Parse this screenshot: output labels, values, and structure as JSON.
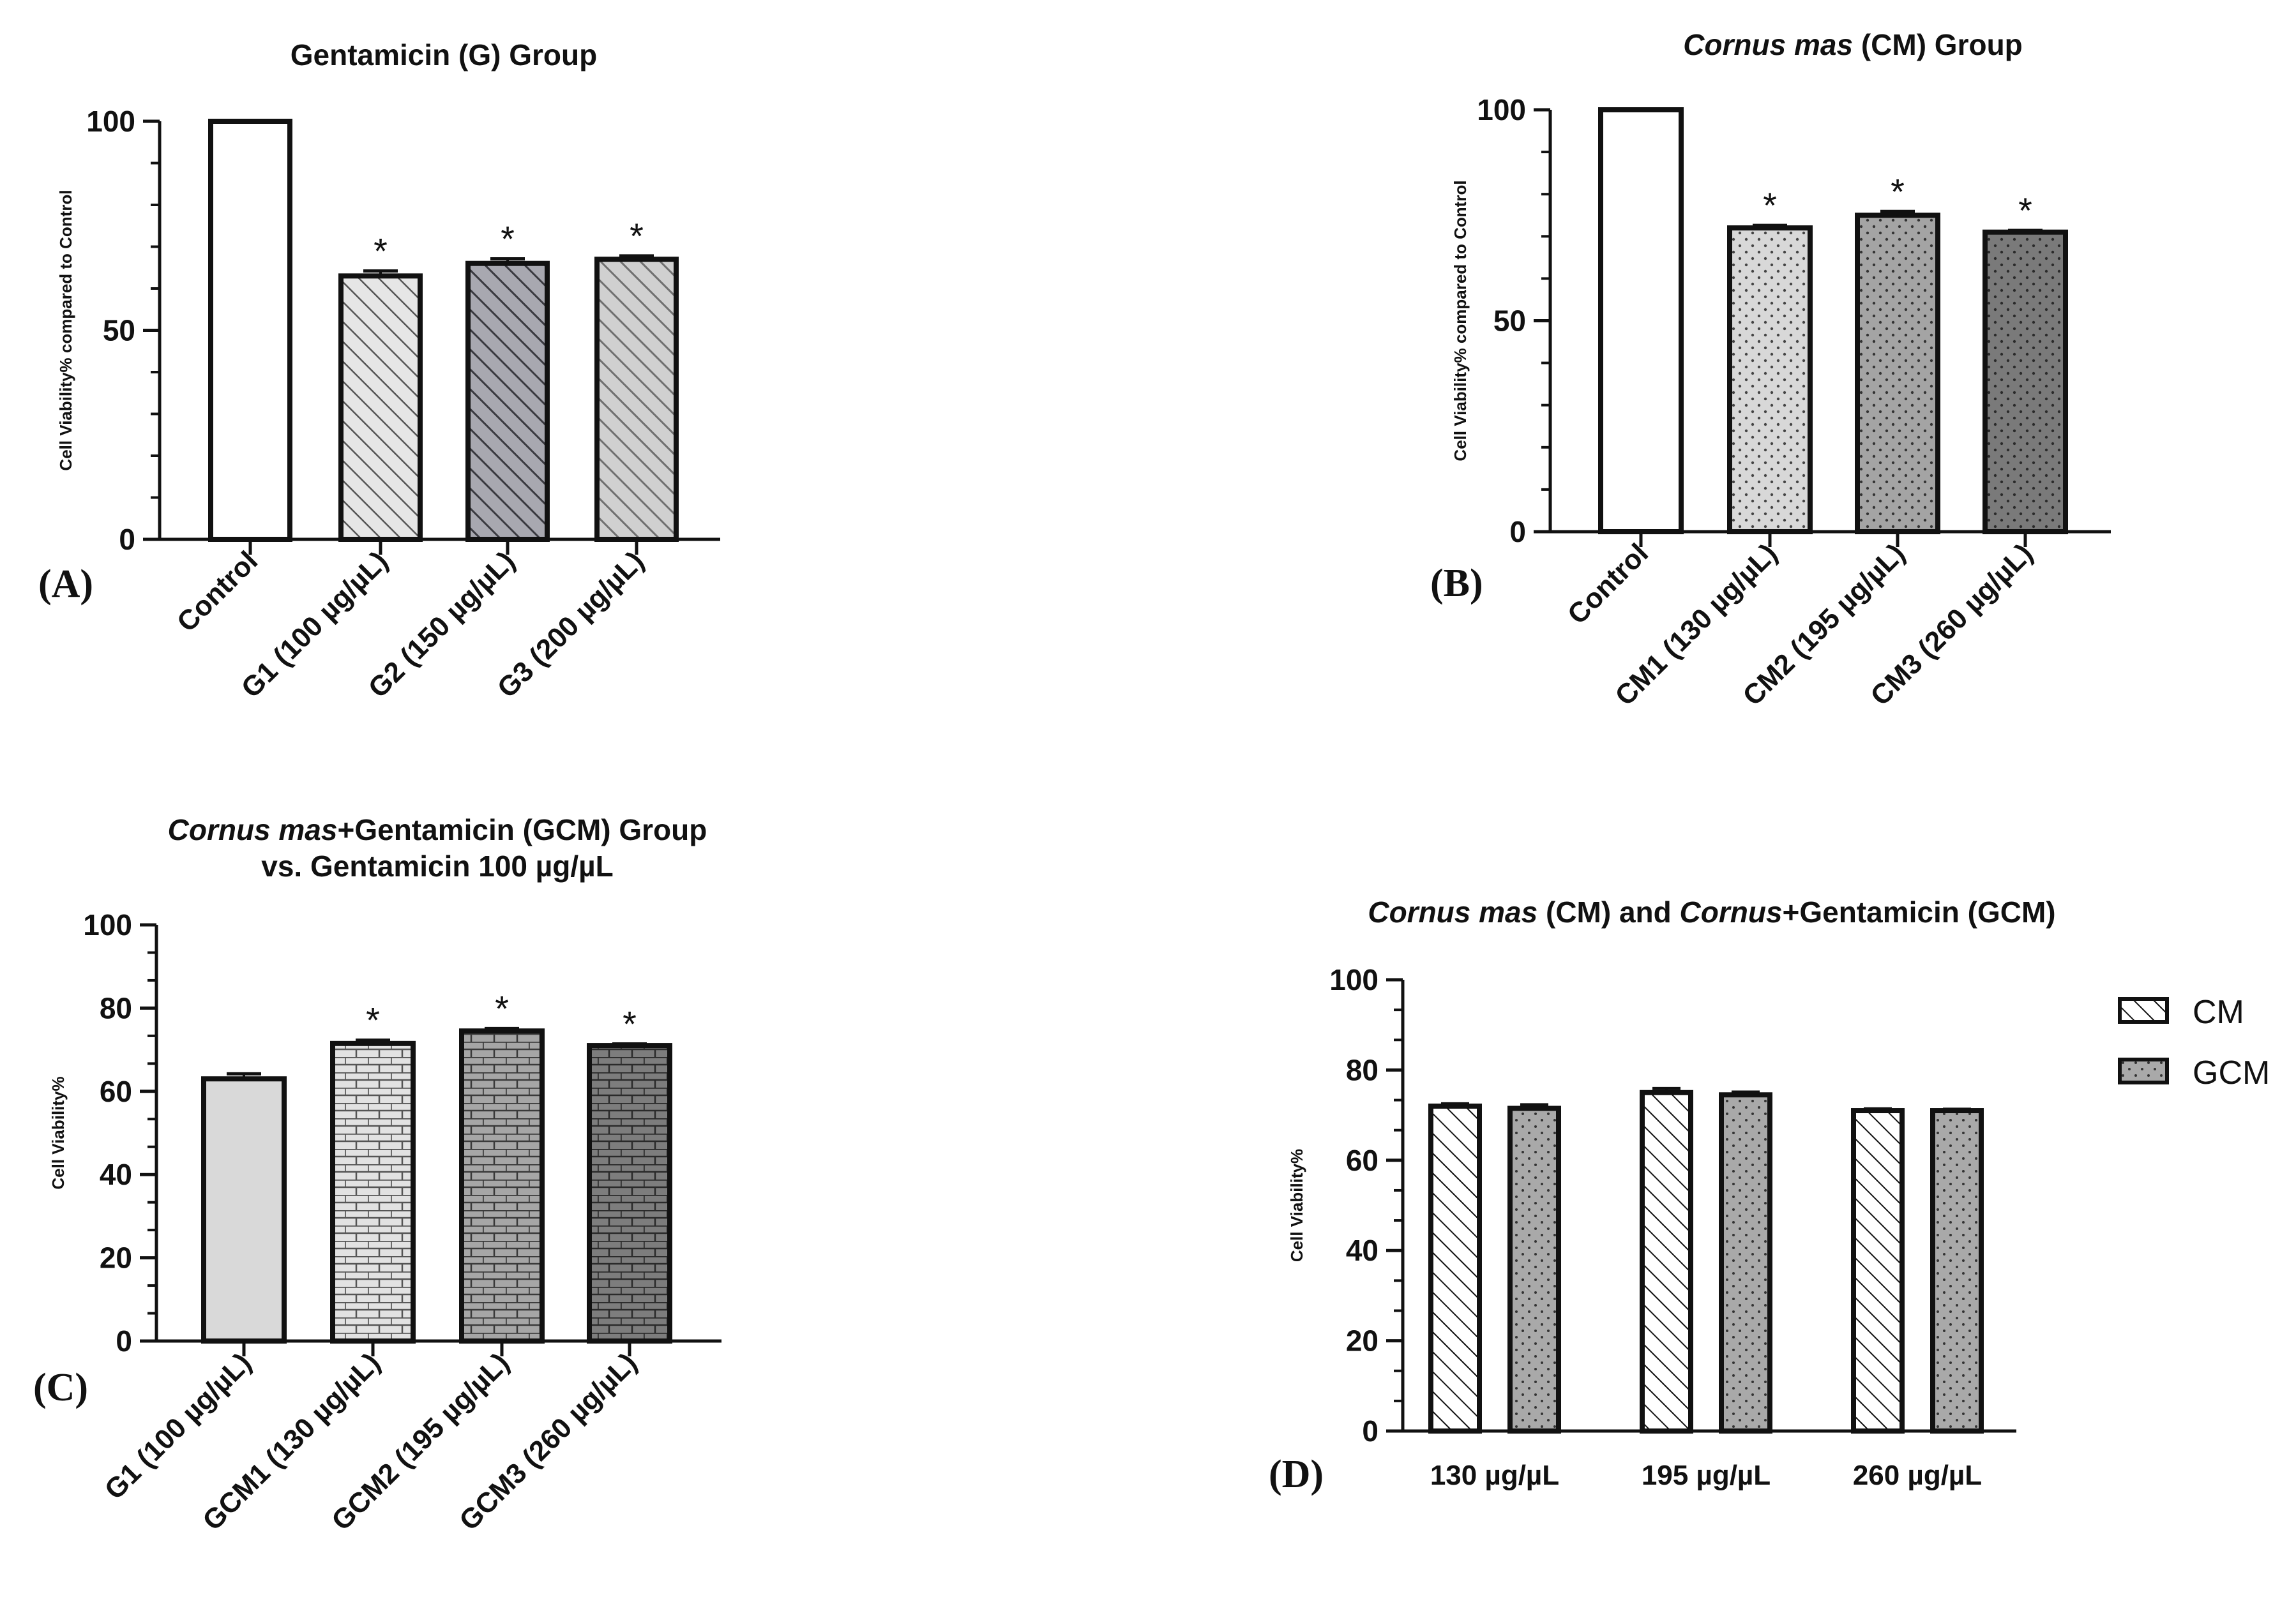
{
  "colors": {
    "axis": "#111111",
    "bar_stroke": "#111111",
    "star": "#111111"
  },
  "chart_data": [
    {
      "panel": "A",
      "panel_label": "(A)",
      "type": "bar",
      "title": [
        {
          "text": "Gentamicin (G) Group",
          "italic": false
        }
      ],
      "title_line2": "",
      "ylabel": "Cell Viability% compared to Control",
      "xlabel": "",
      "ylim": [
        0,
        100
      ],
      "yticks": [
        0,
        50,
        100
      ],
      "categories": [
        "Control",
        "G1 (100 µg/µL)",
        "G2 (150 µg/µL)",
        "G3 (200 µg/µL)"
      ],
      "values": [
        100,
        63,
        66,
        67
      ],
      "errors": [
        0,
        1.2,
        1.1,
        0.8
      ],
      "significance": [
        "",
        "*",
        "*",
        "*"
      ],
      "fills": [
        "white",
        "hatch-light",
        "hatch-dark",
        "hatch-mid"
      ]
    },
    {
      "panel": "B",
      "panel_label": "(B)",
      "type": "bar",
      "title": [
        {
          "text": "Cornus mas",
          "italic": true
        },
        {
          "text": " (CM) Group",
          "italic": false
        }
      ],
      "title_line2": "",
      "ylabel": "Cell Viability% compared to Control",
      "xlabel": "",
      "ylim": [
        0,
        100
      ],
      "yticks": [
        0,
        50,
        100
      ],
      "categories": [
        "Control",
        "CM1 (130 µg/µL)",
        "CM2 (195 µg/µL)",
        "CM3 (260 µg/µL)"
      ],
      "values": [
        100,
        72,
        75,
        71
      ],
      "errors": [
        0,
        0.6,
        0.9,
        0.4
      ],
      "significance": [
        "",
        "*",
        "*",
        "*"
      ],
      "fills": [
        "white",
        "dots-light",
        "dots-mid",
        "dots-dark"
      ]
    },
    {
      "panel": "C",
      "panel_label": "(C)",
      "type": "bar",
      "title": [
        {
          "text": "Cornus mas",
          "italic": true
        },
        {
          "text": "+Gentamicin (GCM) Group",
          "italic": false
        }
      ],
      "title_line2": "vs. Gentamicin 100 µg/µL",
      "ylabel": "Cell Viability%",
      "xlabel": "",
      "ylim": [
        0,
        100
      ],
      "yticks": [
        0,
        20,
        40,
        60,
        80,
        100
      ],
      "categories": [
        "G1 (100 µg/µL)",
        "GCM1 (130 µg/µL)",
        "GCM2 (195 µg/µL)",
        "GCM3 (260 µg/µL)"
      ],
      "values": [
        63,
        71.5,
        74.5,
        71
      ],
      "errors": [
        1.2,
        0.8,
        0.6,
        0.4
      ],
      "significance": [
        "",
        "*",
        "*",
        "*"
      ],
      "fills": [
        "solid-light",
        "brick-light",
        "brick-mid",
        "brick-dark"
      ]
    },
    {
      "panel": "D",
      "panel_label": "(D)",
      "type": "bar",
      "title": [
        {
          "text": "Cornus mas",
          "italic": true
        },
        {
          "text": " (CM) and ",
          "italic": false
        },
        {
          "text": "Cornus",
          "italic": true
        },
        {
          "text": "+Gentamicin (GCM)",
          "italic": false
        }
      ],
      "title_line2": "",
      "ylabel": "Cell Viability%",
      "xlabel": "",
      "ylim": [
        0,
        100
      ],
      "yticks": [
        0,
        20,
        40,
        60,
        80,
        100
      ],
      "categories": [
        "130 µg/µL",
        "195 µg/µL",
        "260 µg/µL"
      ],
      "series": [
        {
          "name": "CM",
          "values": [
            72,
            75,
            71
          ],
          "errors": [
            0.5,
            0.9,
            0.4
          ],
          "fill": "hatch-white"
        },
        {
          "name": "GCM",
          "values": [
            71.5,
            74.5,
            71
          ],
          "errors": [
            0.8,
            0.6,
            0.3
          ],
          "fill": "dots-grey"
        }
      ],
      "legend": "right"
    }
  ]
}
